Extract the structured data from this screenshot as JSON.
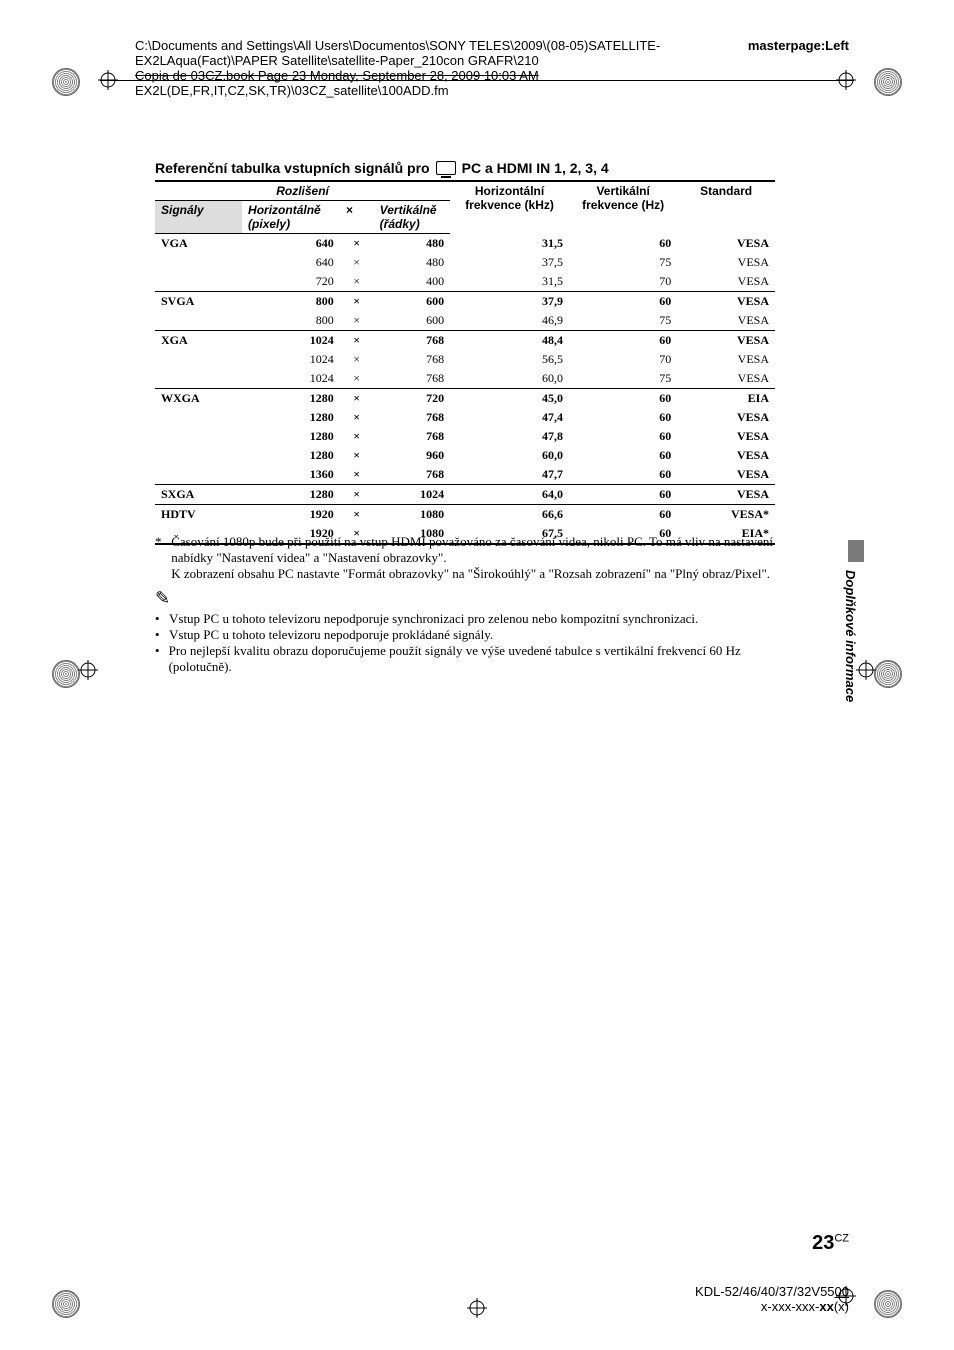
{
  "header": {
    "paths": [
      "C:\\Documents and Settings\\All Users\\Documentos\\SONY TELES\\2009\\(08-05)SATELLITE-EX2LAqua(Fact)\\PAPER Satellite\\satellite-Paper_210con GRAFR\\210",
      "EX2L(DE,FR,IT,CZ,SK,TR)\\03CZ_satellite\\100ADD.fm"
    ],
    "strike_text": "Copia de 03CZ.book  Page 23  Monday, September 28, 2009  10:03 AM",
    "masterpage": "masterpage:Left"
  },
  "section": {
    "title_pre": "Referenční tabulka vstupních signálů pro",
    "title_post": "PC a HDMI IN 1, 2, 3, 4"
  },
  "table": {
    "reso_label": "Rozlišení",
    "headers": {
      "signals": "Signály",
      "horz": "Horizontálně (pixely)",
      "mult": "×",
      "vert": "Vertikálně (řádky)",
      "hfreq": "Horizontální frekvence (kHz)",
      "vfreq": "Vertikální frekvence (Hz)",
      "standard": "Standard"
    },
    "groups": [
      {
        "sig": "VGA",
        "rows": [
          {
            "h": "640",
            "v": "480",
            "hf": "31,5",
            "vf": "60",
            "std": "VESA",
            "bold": true
          },
          {
            "h": "640",
            "v": "480",
            "hf": "37,5",
            "vf": "75",
            "std": "VESA",
            "bold": false
          },
          {
            "h": "720",
            "v": "400",
            "hf": "31,5",
            "vf": "70",
            "std": "VESA",
            "bold": false
          }
        ]
      },
      {
        "sig": "SVGA",
        "rows": [
          {
            "h": "800",
            "v": "600",
            "hf": "37,9",
            "vf": "60",
            "std": "VESA",
            "bold": true
          },
          {
            "h": "800",
            "v": "600",
            "hf": "46,9",
            "vf": "75",
            "std": "VESA",
            "bold": false
          }
        ]
      },
      {
        "sig": "XGA",
        "rows": [
          {
            "h": "1024",
            "v": "768",
            "hf": "48,4",
            "vf": "60",
            "std": "VESA",
            "bold": true
          },
          {
            "h": "1024",
            "v": "768",
            "hf": "56,5",
            "vf": "70",
            "std": "VESA",
            "bold": false
          },
          {
            "h": "1024",
            "v": "768",
            "hf": "60,0",
            "vf": "75",
            "std": "VESA",
            "bold": false
          }
        ]
      },
      {
        "sig": "WXGA",
        "rows": [
          {
            "h": "1280",
            "v": "720",
            "hf": "45,0",
            "vf": "60",
            "std": "EIA",
            "bold": true
          },
          {
            "h": "1280",
            "v": "768",
            "hf": "47,4",
            "vf": "60",
            "std": "VESA",
            "bold": true
          },
          {
            "h": "1280",
            "v": "768",
            "hf": "47,8",
            "vf": "60",
            "std": "VESA",
            "bold": true
          },
          {
            "h": "1280",
            "v": "960",
            "hf": "60,0",
            "vf": "60",
            "std": "VESA",
            "bold": true
          },
          {
            "h": "1360",
            "v": "768",
            "hf": "47,7",
            "vf": "60",
            "std": "VESA",
            "bold": true
          }
        ]
      },
      {
        "sig": "SXGA",
        "rows": [
          {
            "h": "1280",
            "v": "1024",
            "hf": "64,0",
            "vf": "60",
            "std": "VESA",
            "bold": true
          }
        ]
      },
      {
        "sig": "HDTV",
        "rows": [
          {
            "h": "1920",
            "v": "1080",
            "hf": "66,6",
            "vf": "60",
            "std": "VESA*",
            "bold": true
          },
          {
            "h": "1920",
            "v": "1080",
            "hf": "67,5",
            "vf": "60",
            "std": "EIA*",
            "bold": true
          }
        ]
      }
    ]
  },
  "footnote": {
    "asterisk_lines": [
      "Časování 1080p bude při použití na vstup HDMI považováno za časování videa, nikoli PC. To má vliv na nastavení nabídky \"Nastavení videa\" a \"Nastavení obrazovky\".",
      "K zobrazení obsahu PC nastavte \"Formát obrazovky\" na \"Širokoúhlý\" a \"Rozsah zobrazení\" na \"Plný obraz/Pixel\"."
    ],
    "note_icon": "✎",
    "bullets": [
      "Vstup PC u tohoto televizoru nepodporuje synchronizaci pro zelenou nebo kompozitní synchronizaci.",
      "Vstup PC u tohoto televizoru nepodporuje prokládané signály.",
      "Pro nejlepší kvalitu obrazu doporučujeme použít signály ve výše uvedené tabulce s vertikální frekvencí 60 Hz (polotučně)."
    ]
  },
  "side_text": "Doplňkové informace",
  "page": {
    "num": "23",
    "suffix": "CZ"
  },
  "footer": {
    "model": "KDL-52/46/40/37/32V5500",
    "model_ul": "00",
    "code_pre": "x-xxx-xxx-",
    "code_bold": "xx",
    "code_post": "(x)"
  }
}
